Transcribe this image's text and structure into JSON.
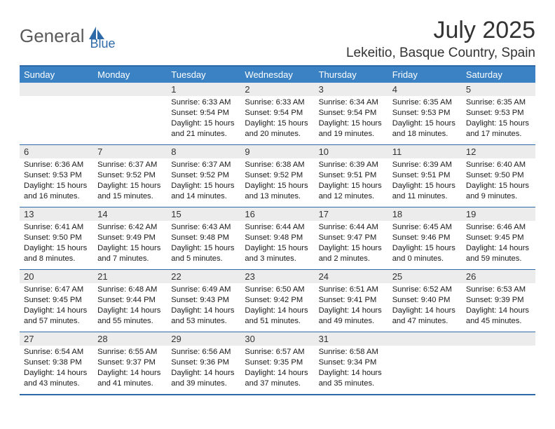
{
  "logo": {
    "text1": "General",
    "text2": "Blue"
  },
  "title": "July 2025",
  "location": "Lekeitio, Basque Country, Spain",
  "colors": {
    "accent": "#2f6aa8",
    "header_bg": "#3b82c4",
    "num_row_bg": "#ececec",
    "header_text": "#ffffff",
    "body_text": "#1a1a1a"
  },
  "day_names": [
    "Sunday",
    "Monday",
    "Tuesday",
    "Wednesday",
    "Thursday",
    "Friday",
    "Saturday"
  ],
  "weeks": [
    [
      {
        "n": "",
        "lines": []
      },
      {
        "n": "",
        "lines": []
      },
      {
        "n": "1",
        "lines": [
          "Sunrise: 6:33 AM",
          "Sunset: 9:54 PM",
          "Daylight: 15 hours and 21 minutes."
        ]
      },
      {
        "n": "2",
        "lines": [
          "Sunrise: 6:33 AM",
          "Sunset: 9:54 PM",
          "Daylight: 15 hours and 20 minutes."
        ]
      },
      {
        "n": "3",
        "lines": [
          "Sunrise: 6:34 AM",
          "Sunset: 9:54 PM",
          "Daylight: 15 hours and 19 minutes."
        ]
      },
      {
        "n": "4",
        "lines": [
          "Sunrise: 6:35 AM",
          "Sunset: 9:53 PM",
          "Daylight: 15 hours and 18 minutes."
        ]
      },
      {
        "n": "5",
        "lines": [
          "Sunrise: 6:35 AM",
          "Sunset: 9:53 PM",
          "Daylight: 15 hours and 17 minutes."
        ]
      }
    ],
    [
      {
        "n": "6",
        "lines": [
          "Sunrise: 6:36 AM",
          "Sunset: 9:53 PM",
          "Daylight: 15 hours and 16 minutes."
        ]
      },
      {
        "n": "7",
        "lines": [
          "Sunrise: 6:37 AM",
          "Sunset: 9:52 PM",
          "Daylight: 15 hours and 15 minutes."
        ]
      },
      {
        "n": "8",
        "lines": [
          "Sunrise: 6:37 AM",
          "Sunset: 9:52 PM",
          "Daylight: 15 hours and 14 minutes."
        ]
      },
      {
        "n": "9",
        "lines": [
          "Sunrise: 6:38 AM",
          "Sunset: 9:52 PM",
          "Daylight: 15 hours and 13 minutes."
        ]
      },
      {
        "n": "10",
        "lines": [
          "Sunrise: 6:39 AM",
          "Sunset: 9:51 PM",
          "Daylight: 15 hours and 12 minutes."
        ]
      },
      {
        "n": "11",
        "lines": [
          "Sunrise: 6:39 AM",
          "Sunset: 9:51 PM",
          "Daylight: 15 hours and 11 minutes."
        ]
      },
      {
        "n": "12",
        "lines": [
          "Sunrise: 6:40 AM",
          "Sunset: 9:50 PM",
          "Daylight: 15 hours and 9 minutes."
        ]
      }
    ],
    [
      {
        "n": "13",
        "lines": [
          "Sunrise: 6:41 AM",
          "Sunset: 9:50 PM",
          "Daylight: 15 hours and 8 minutes."
        ]
      },
      {
        "n": "14",
        "lines": [
          "Sunrise: 6:42 AM",
          "Sunset: 9:49 PM",
          "Daylight: 15 hours and 7 minutes."
        ]
      },
      {
        "n": "15",
        "lines": [
          "Sunrise: 6:43 AM",
          "Sunset: 9:48 PM",
          "Daylight: 15 hours and 5 minutes."
        ]
      },
      {
        "n": "16",
        "lines": [
          "Sunrise: 6:44 AM",
          "Sunset: 9:48 PM",
          "Daylight: 15 hours and 3 minutes."
        ]
      },
      {
        "n": "17",
        "lines": [
          "Sunrise: 6:44 AM",
          "Sunset: 9:47 PM",
          "Daylight: 15 hours and 2 minutes."
        ]
      },
      {
        "n": "18",
        "lines": [
          "Sunrise: 6:45 AM",
          "Sunset: 9:46 PM",
          "Daylight: 15 hours and 0 minutes."
        ]
      },
      {
        "n": "19",
        "lines": [
          "Sunrise: 6:46 AM",
          "Sunset: 9:45 PM",
          "Daylight: 14 hours and 59 minutes."
        ]
      }
    ],
    [
      {
        "n": "20",
        "lines": [
          "Sunrise: 6:47 AM",
          "Sunset: 9:45 PM",
          "Daylight: 14 hours and 57 minutes."
        ]
      },
      {
        "n": "21",
        "lines": [
          "Sunrise: 6:48 AM",
          "Sunset: 9:44 PM",
          "Daylight: 14 hours and 55 minutes."
        ]
      },
      {
        "n": "22",
        "lines": [
          "Sunrise: 6:49 AM",
          "Sunset: 9:43 PM",
          "Daylight: 14 hours and 53 minutes."
        ]
      },
      {
        "n": "23",
        "lines": [
          "Sunrise: 6:50 AM",
          "Sunset: 9:42 PM",
          "Daylight: 14 hours and 51 minutes."
        ]
      },
      {
        "n": "24",
        "lines": [
          "Sunrise: 6:51 AM",
          "Sunset: 9:41 PM",
          "Daylight: 14 hours and 49 minutes."
        ]
      },
      {
        "n": "25",
        "lines": [
          "Sunrise: 6:52 AM",
          "Sunset: 9:40 PM",
          "Daylight: 14 hours and 47 minutes."
        ]
      },
      {
        "n": "26",
        "lines": [
          "Sunrise: 6:53 AM",
          "Sunset: 9:39 PM",
          "Daylight: 14 hours and 45 minutes."
        ]
      }
    ],
    [
      {
        "n": "27",
        "lines": [
          "Sunrise: 6:54 AM",
          "Sunset: 9:38 PM",
          "Daylight: 14 hours and 43 minutes."
        ]
      },
      {
        "n": "28",
        "lines": [
          "Sunrise: 6:55 AM",
          "Sunset: 9:37 PM",
          "Daylight: 14 hours and 41 minutes."
        ]
      },
      {
        "n": "29",
        "lines": [
          "Sunrise: 6:56 AM",
          "Sunset: 9:36 PM",
          "Daylight: 14 hours and 39 minutes."
        ]
      },
      {
        "n": "30",
        "lines": [
          "Sunrise: 6:57 AM",
          "Sunset: 9:35 PM",
          "Daylight: 14 hours and 37 minutes."
        ]
      },
      {
        "n": "31",
        "lines": [
          "Sunrise: 6:58 AM",
          "Sunset: 9:34 PM",
          "Daylight: 14 hours and 35 minutes."
        ]
      },
      {
        "n": "",
        "lines": []
      },
      {
        "n": "",
        "lines": []
      }
    ]
  ]
}
